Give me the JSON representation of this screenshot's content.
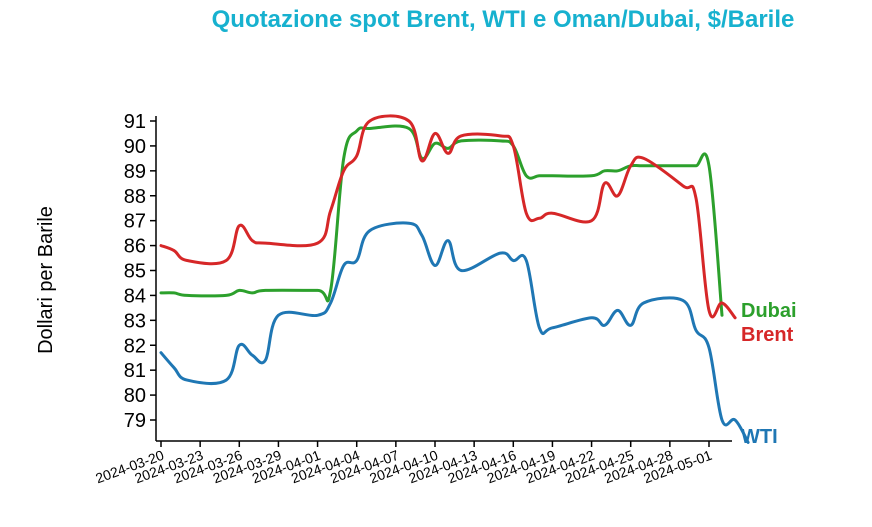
{
  "chart_data": {
    "type": "line",
    "title": "Quotazione spot Brent, WTI e Oman/Dubai, $/Barile",
    "ylabel": "Dollari per Barile",
    "xlabel": "",
    "ylim": [
      78.1,
      91.2
    ],
    "y_ticks": [
      79,
      80,
      81,
      82,
      83,
      84,
      85,
      86,
      87,
      88,
      89,
      90,
      91
    ],
    "x_tick_labels": [
      "2024-03-20",
      "2024-03-23",
      "2024-03-26",
      "2024-03-29",
      "2024-04-01",
      "2024-04-04",
      "2024-04-07",
      "2024-04-10",
      "2024-04-13",
      "2024-04-16",
      "2024-04-19",
      "2024-04-22",
      "2024-04-25",
      "2024-04-28",
      "2024-05-01"
    ],
    "grid": false,
    "legend": "inline labels at right end of lines",
    "series": [
      {
        "name": "Dubai",
        "color": "#2ca02c",
        "points": [
          [
            "2024-03-20",
            84.1
          ],
          [
            "2024-03-21",
            84.1
          ],
          [
            "2024-03-22",
            84.0
          ],
          [
            "2024-03-25",
            84.0
          ],
          [
            "2024-03-26",
            84.2
          ],
          [
            "2024-03-27",
            84.1
          ],
          [
            "2024-03-28",
            84.2
          ],
          [
            "2024-04-01",
            84.2
          ],
          [
            "2024-04-02",
            84.2
          ],
          [
            "2024-04-03",
            89.5
          ],
          [
            "2024-04-04",
            90.6
          ],
          [
            "2024-04-05",
            90.7
          ],
          [
            "2024-04-08",
            90.7
          ],
          [
            "2024-04-09",
            89.5
          ],
          [
            "2024-04-10",
            90.1
          ],
          [
            "2024-04-11",
            89.9
          ],
          [
            "2024-04-12",
            90.2
          ],
          [
            "2024-04-15",
            90.2
          ],
          [
            "2024-04-16",
            90.0
          ],
          [
            "2024-04-17",
            88.8
          ],
          [
            "2024-04-18",
            88.8
          ],
          [
            "2024-04-19",
            88.8
          ],
          [
            "2024-04-22",
            88.8
          ],
          [
            "2024-04-23",
            89.0
          ],
          [
            "2024-04-24",
            89.0
          ],
          [
            "2024-04-25",
            89.2
          ],
          [
            "2024-04-26",
            89.2
          ],
          [
            "2024-04-29",
            89.2
          ],
          [
            "2024-04-30",
            89.2
          ],
          [
            "2024-05-01",
            89.2
          ],
          [
            "2024-05-02",
            83.2
          ]
        ]
      },
      {
        "name": "Brent",
        "color": "#d62728",
        "points": [
          [
            "2024-03-20",
            86.0
          ],
          [
            "2024-03-21",
            85.8
          ],
          [
            "2024-03-22",
            85.4
          ],
          [
            "2024-03-25",
            85.4
          ],
          [
            "2024-03-26",
            86.8
          ],
          [
            "2024-03-27",
            86.2
          ],
          [
            "2024-03-28",
            86.1
          ],
          [
            "2024-04-01",
            86.1
          ],
          [
            "2024-04-02",
            87.4
          ],
          [
            "2024-04-03",
            89.0
          ],
          [
            "2024-04-04",
            89.6
          ],
          [
            "2024-04-05",
            91.0
          ],
          [
            "2024-04-08",
            91.0
          ],
          [
            "2024-04-09",
            89.4
          ],
          [
            "2024-04-10",
            90.5
          ],
          [
            "2024-04-11",
            89.7
          ],
          [
            "2024-04-12",
            90.4
          ],
          [
            "2024-04-15",
            90.4
          ],
          [
            "2024-04-16",
            90.0
          ],
          [
            "2024-04-17",
            87.3
          ],
          [
            "2024-04-18",
            87.1
          ],
          [
            "2024-04-19",
            87.3
          ],
          [
            "2024-04-22",
            87.0
          ],
          [
            "2024-04-23",
            88.5
          ],
          [
            "2024-04-24",
            88.0
          ],
          [
            "2024-04-25",
            89.2
          ],
          [
            "2024-04-26",
            89.5
          ],
          [
            "2024-04-29",
            88.4
          ],
          [
            "2024-04-30",
            87.9
          ],
          [
            "2024-05-01",
            83.4
          ],
          [
            "2024-05-02",
            83.7
          ],
          [
            "2024-05-03",
            83.1
          ]
        ]
      },
      {
        "name": "WTI",
        "color": "#1f77b4",
        "points": [
          [
            "2024-03-20",
            81.7
          ],
          [
            "2024-03-21",
            81.1
          ],
          [
            "2024-03-22",
            80.6
          ],
          [
            "2024-03-25",
            80.6
          ],
          [
            "2024-03-26",
            82.0
          ],
          [
            "2024-03-27",
            81.6
          ],
          [
            "2024-03-28",
            81.4
          ],
          [
            "2024-03-29",
            83.2
          ],
          [
            "2024-04-01",
            83.2
          ],
          [
            "2024-04-02",
            83.7
          ],
          [
            "2024-04-03",
            85.2
          ],
          [
            "2024-04-04",
            85.4
          ],
          [
            "2024-04-05",
            86.6
          ],
          [
            "2024-04-08",
            86.9
          ],
          [
            "2024-04-09",
            86.4
          ],
          [
            "2024-04-10",
            85.2
          ],
          [
            "2024-04-11",
            86.2
          ],
          [
            "2024-04-12",
            85.0
          ],
          [
            "2024-04-15",
            85.7
          ],
          [
            "2024-04-16",
            85.4
          ],
          [
            "2024-04-17",
            85.4
          ],
          [
            "2024-04-18",
            82.7
          ],
          [
            "2024-04-19",
            82.7
          ],
          [
            "2024-04-22",
            83.1
          ],
          [
            "2024-04-23",
            82.8
          ],
          [
            "2024-04-24",
            83.4
          ],
          [
            "2024-04-25",
            82.8
          ],
          [
            "2024-04-26",
            83.7
          ],
          [
            "2024-04-29",
            83.8
          ],
          [
            "2024-04-30",
            82.6
          ],
          [
            "2024-05-01",
            81.9
          ],
          [
            "2024-05-02",
            79.0
          ],
          [
            "2024-05-03",
            79.0
          ],
          [
            "2024-05-04",
            78.1
          ]
        ]
      }
    ]
  }
}
